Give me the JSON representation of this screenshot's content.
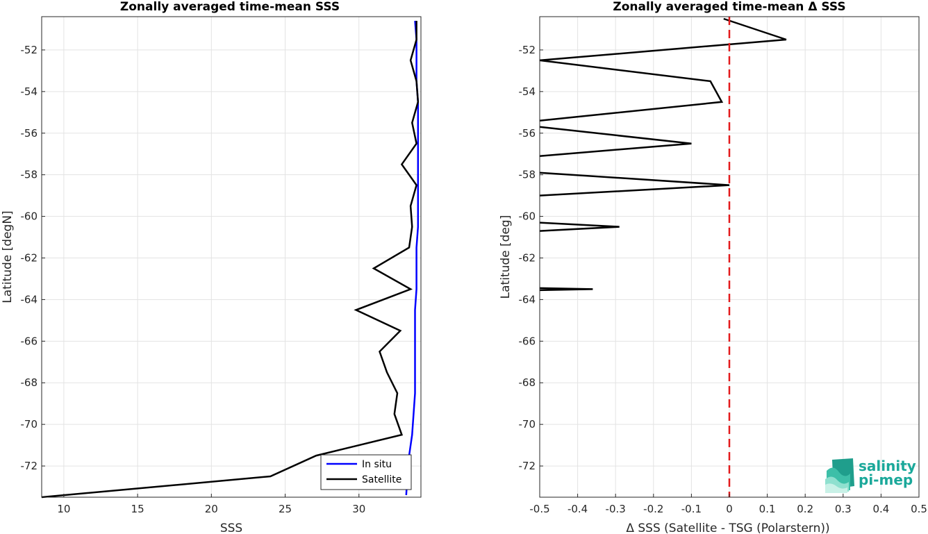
{
  "chart_data": [
    {
      "type": "line",
      "title": "Zonally averaged time-mean SSS",
      "xlabel": "SSS",
      "ylabel": "Latitude [degN]",
      "xlim": [
        8.5,
        34.2
      ],
      "ylim": [
        -73.5,
        -50.4
      ],
      "xticks": [
        10,
        15,
        20,
        25,
        30
      ],
      "yticks": [
        -52,
        -54,
        -56,
        -58,
        -60,
        -62,
        -64,
        -66,
        -68,
        -70,
        -72
      ],
      "grid": true,
      "legend_position": "bottom-right",
      "series": [
        {
          "name": "In situ",
          "color": "#0000ff",
          "points": [
            [
              33.8,
              -50.6
            ],
            [
              33.9,
              -51.5
            ],
            [
              33.9,
              -52.5
            ],
            [
              33.9,
              -53.5
            ],
            [
              34.0,
              -54.5
            ],
            [
              34.0,
              -55.5
            ],
            [
              34.0,
              -56.5
            ],
            [
              34.0,
              -57.5
            ],
            [
              34.0,
              -58.5
            ],
            [
              34.0,
              -59.5
            ],
            [
              34.0,
              -60.5
            ],
            [
              33.9,
              -61.5
            ],
            [
              33.9,
              -62.5
            ],
            [
              33.9,
              -63.5
            ],
            [
              33.8,
              -64.5
            ],
            [
              33.8,
              -65.5
            ],
            [
              33.8,
              -66.5
            ],
            [
              33.8,
              -67.5
            ],
            [
              33.8,
              -68.5
            ],
            [
              33.7,
              -69.5
            ],
            [
              33.6,
              -70.5
            ],
            [
              33.4,
              -71.5
            ],
            [
              33.3,
              -72.3
            ],
            [
              33.2,
              -73.4
            ]
          ]
        },
        {
          "name": "Satellite",
          "color": "#000000",
          "points": [
            [
              33.9,
              -50.6
            ],
            [
              33.9,
              -51.5
            ],
            [
              33.5,
              -52.5
            ],
            [
              33.9,
              -53.5
            ],
            [
              34.0,
              -54.5
            ],
            [
              33.6,
              -55.5
            ],
            [
              33.9,
              -56.5
            ],
            [
              32.9,
              -57.5
            ],
            [
              33.9,
              -58.5
            ],
            [
              33.5,
              -59.5
            ],
            [
              33.6,
              -60.5
            ],
            [
              33.4,
              -61.5
            ],
            [
              31.0,
              -62.5
            ],
            [
              33.5,
              -63.5
            ],
            [
              29.8,
              -64.5
            ],
            [
              32.8,
              -65.5
            ],
            [
              31.4,
              -66.5
            ],
            [
              31.9,
              -67.5
            ],
            [
              32.6,
              -68.5
            ],
            [
              32.4,
              -69.5
            ],
            [
              32.9,
              -70.5
            ],
            [
              27.1,
              -71.5
            ],
            [
              24.0,
              -72.5
            ],
            [
              8.5,
              -73.5
            ]
          ]
        }
      ]
    },
    {
      "type": "line",
      "title": "Zonally averaged time-mean Δ SSS",
      "xlabel": "Δ SSS (Satellite - TSG (Polarstern))",
      "ylabel": "Latitude [deg]",
      "xlim": [
        -0.5,
        0.5
      ],
      "ylim": [
        -73.5,
        -50.4
      ],
      "xticks": [
        -0.5,
        -0.4,
        -0.3,
        -0.2,
        -0.1,
        0,
        0.1,
        0.2,
        0.3,
        0.4,
        0.5
      ],
      "yticks": [
        -52,
        -54,
        -56,
        -58,
        -60,
        -62,
        -64,
        -66,
        -68,
        -70,
        -72
      ],
      "grid": true,
      "reference_line": {
        "x": 0,
        "color": "#e31a1c",
        "style": "dashed"
      },
      "series": [
        {
          "color": "#000000",
          "segments": [
            [
              [
                -0.015,
                -50.5
              ],
              [
                0.15,
                -51.5
              ],
              [
                -0.5,
                -52.5
              ]
            ],
            [
              [
                -0.5,
                -52.5
              ],
              [
                -0.05,
                -53.5
              ],
              [
                -0.02,
                -54.5
              ],
              [
                -0.5,
                -55.4
              ]
            ],
            [
              [
                -0.5,
                -55.7
              ],
              [
                -0.1,
                -56.5
              ],
              [
                -0.5,
                -57.1
              ]
            ],
            [
              [
                -0.5,
                -57.9
              ],
              [
                0.0,
                -58.5
              ],
              [
                -0.5,
                -59.0
              ]
            ],
            [
              [
                -0.5,
                -60.3
              ],
              [
                -0.29,
                -60.5
              ],
              [
                -0.5,
                -60.7
              ]
            ],
            [
              [
                -0.5,
                -63.45
              ],
              [
                -0.36,
                -63.5
              ],
              [
                -0.5,
                -63.55
              ]
            ]
          ]
        }
      ]
    }
  ],
  "logo": {
    "line1": "salinity",
    "line2": "pi-mep",
    "color": "#1aa89a"
  }
}
